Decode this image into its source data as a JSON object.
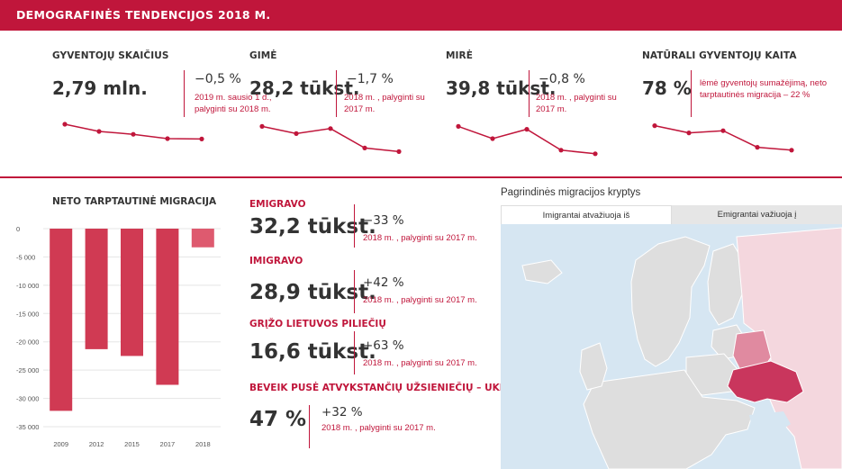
{
  "header": {
    "title": "DEMOGRAFINĖS TENDENCIJOS 2018 M."
  },
  "kpis": [
    {
      "title": "GYVENTOJŲ SKAIČIUS",
      "value": "2,79 mln.",
      "change": "−0,5 %",
      "note": "2019 m. sausio 1 d., palyginti su 2018 m.",
      "trend": [
        5,
        4,
        3.6,
        3.0,
        2.95
      ]
    },
    {
      "title": "GIMĖ",
      "value": "28,2 tūkst.",
      "change": "−1,7 %",
      "note": "2018 m. , palyginti su 2017 m.",
      "trend": [
        4.7,
        3.7,
        4.4,
        1.7,
        1.2
      ]
    },
    {
      "title": "MIRĖ",
      "value": "39,8 tūkst.",
      "change": "−0,8 %",
      "note": "2018 m. , palyginti su 2017 m.",
      "trend": [
        4.7,
        3.0,
        4.3,
        1.4,
        0.9
      ]
    },
    {
      "title": "NATŪRALI GYVENTOJŲ KAITA",
      "value": "78 %",
      "change": "",
      "note": "lėmė gyventojų sumažėjimą, neto tarptautinės migracija – 22 %",
      "trend": [
        4.8,
        3.8,
        4.1,
        1.8,
        1.4
      ]
    }
  ],
  "migration_chart": {
    "title": "NETO TARPTAUTINĖ MIGRACIJA",
    "y_ticks": [
      "0",
      "-5 000",
      "-10 000",
      "-15 000",
      "-20 000",
      "-25 000",
      "-30 000",
      "-35 000"
    ]
  },
  "chart_data": {
    "type": "bar",
    "title": "NETO TARPTAUTINĖ MIGRACIJA",
    "categories": [
      "2009",
      "2012",
      "2015",
      "2017",
      "2018"
    ],
    "values": [
      -32200,
      -21300,
      -22500,
      -27600,
      -3300
    ],
    "ylim": [
      -35000,
      0
    ],
    "grid": true,
    "colors": {
      "bar": "#d03a53",
      "bar_last": "#de5a6f"
    }
  },
  "stats": [
    {
      "title": "EMIGRAVO",
      "value": "32,2 tūkst.",
      "change": "−33 %",
      "note": "2018 m. , palyginti su 2017 m."
    },
    {
      "title": "IMIGRAVO",
      "value": "28,9 tūkst.",
      "change": "+42 %",
      "note": "2018 m. , palyginti su 2017 m."
    },
    {
      "title": "GRĮŽO LIETUVOS PILIEČIŲ",
      "value": "16,6 tūkst.",
      "change": "+63 %",
      "note": "2018 m. , palyginti su 2017 m."
    },
    {
      "title": "BEVEIK PUSĖ ATVYKSTANČIŲ UŽSIENIEČIŲ – UKRAINIEČIAI",
      "value": "47 %",
      "change": "+32 %",
      "note": "2018 m. , palyginti su 2017 m."
    }
  ],
  "map": {
    "title": "Pagrindinės migracijos kryptys",
    "tabs": [
      "Imigrantai atvažiuoja iš",
      "Emigrantai važiuoja į"
    ],
    "colors": {
      "land": "#dedede",
      "highlight_strong": "#c9365d",
      "highlight_medium": "#e08aa0",
      "highlight_light": "#f4d7de",
      "water": "#d6e6f2"
    }
  },
  "colors": {
    "accent": "#c0163b",
    "text": "#333333"
  }
}
